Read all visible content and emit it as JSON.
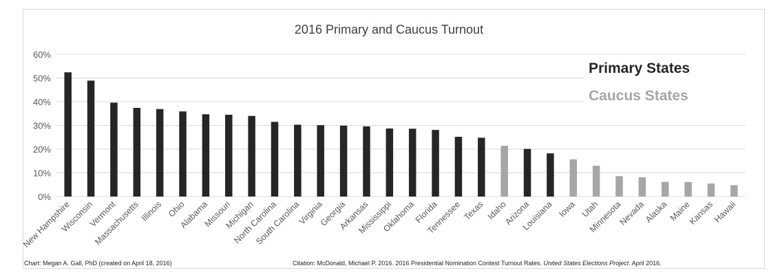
{
  "chart_data": {
    "type": "bar",
    "title": "2016 Primary and Caucus Turnout",
    "xlabel": "",
    "ylabel": "",
    "ylim": [
      0,
      60
    ],
    "y_ticks": [
      "0%",
      "10%",
      "20%",
      "30%",
      "40%",
      "50%",
      "60%"
    ],
    "y_tick_values": [
      0,
      10,
      20,
      30,
      40,
      50,
      60
    ],
    "grid": true,
    "legend_position": "top-right",
    "categories": [
      "New Hampshire",
      "Wisconsin",
      "Vermont",
      "Massachusetts",
      "Illinois",
      "Ohio",
      "Alabama",
      "Missouri",
      "Michigan",
      "North Carolina",
      "South Carolina",
      "Virginia",
      "Georgia",
      "Arkansas",
      "Mississippi",
      "Oklahoma",
      "Florida",
      "Tennessee",
      "Texas",
      "Idaho",
      "Arizona",
      "Louisiana",
      "Iowa",
      "Utah",
      "Minnesota",
      "Nevada",
      "Alaska",
      "Maine",
      "Kansas",
      "Hawaii"
    ],
    "values": [
      52.4,
      48.9,
      39.6,
      37.4,
      36.9,
      35.9,
      34.7,
      34.5,
      34.0,
      31.5,
      30.3,
      30.1,
      29.9,
      29.6,
      28.7,
      28.6,
      28.1,
      25.2,
      24.8,
      21.4,
      20.1,
      18.2,
      15.7,
      13.0,
      8.6,
      8.1,
      6.2,
      6.1,
      5.5,
      4.8
    ],
    "bar_types": [
      "primary",
      "primary",
      "primary",
      "primary",
      "primary",
      "primary",
      "primary",
      "primary",
      "primary",
      "primary",
      "primary",
      "primary",
      "primary",
      "primary",
      "primary",
      "primary",
      "primary",
      "primary",
      "primary",
      "caucus",
      "primary",
      "primary",
      "caucus",
      "caucus",
      "caucus",
      "caucus",
      "caucus",
      "caucus",
      "caucus",
      "caucus"
    ],
    "legend": [
      {
        "key": "primary",
        "label": "Primary States",
        "color": "#262626"
      },
      {
        "key": "caucus",
        "label": "Caucus States",
        "color": "#a6a6a6"
      }
    ]
  },
  "credits": {
    "left": "Chart: Megan A. Gall, PhD  (created on April 18, 2016)",
    "right_prefix": "Citation: McDonald, Michael P. 2016. 2016  Presidential Nomination Contest Turnout Rates. ",
    "right_italic": "United States Elections Project",
    "right_suffix": ". April 2016."
  },
  "colors": {
    "primary": "#262626",
    "caucus": "#a6a6a6",
    "grid": "#d9d9d9",
    "text": "#595959",
    "title": "#404040"
  }
}
